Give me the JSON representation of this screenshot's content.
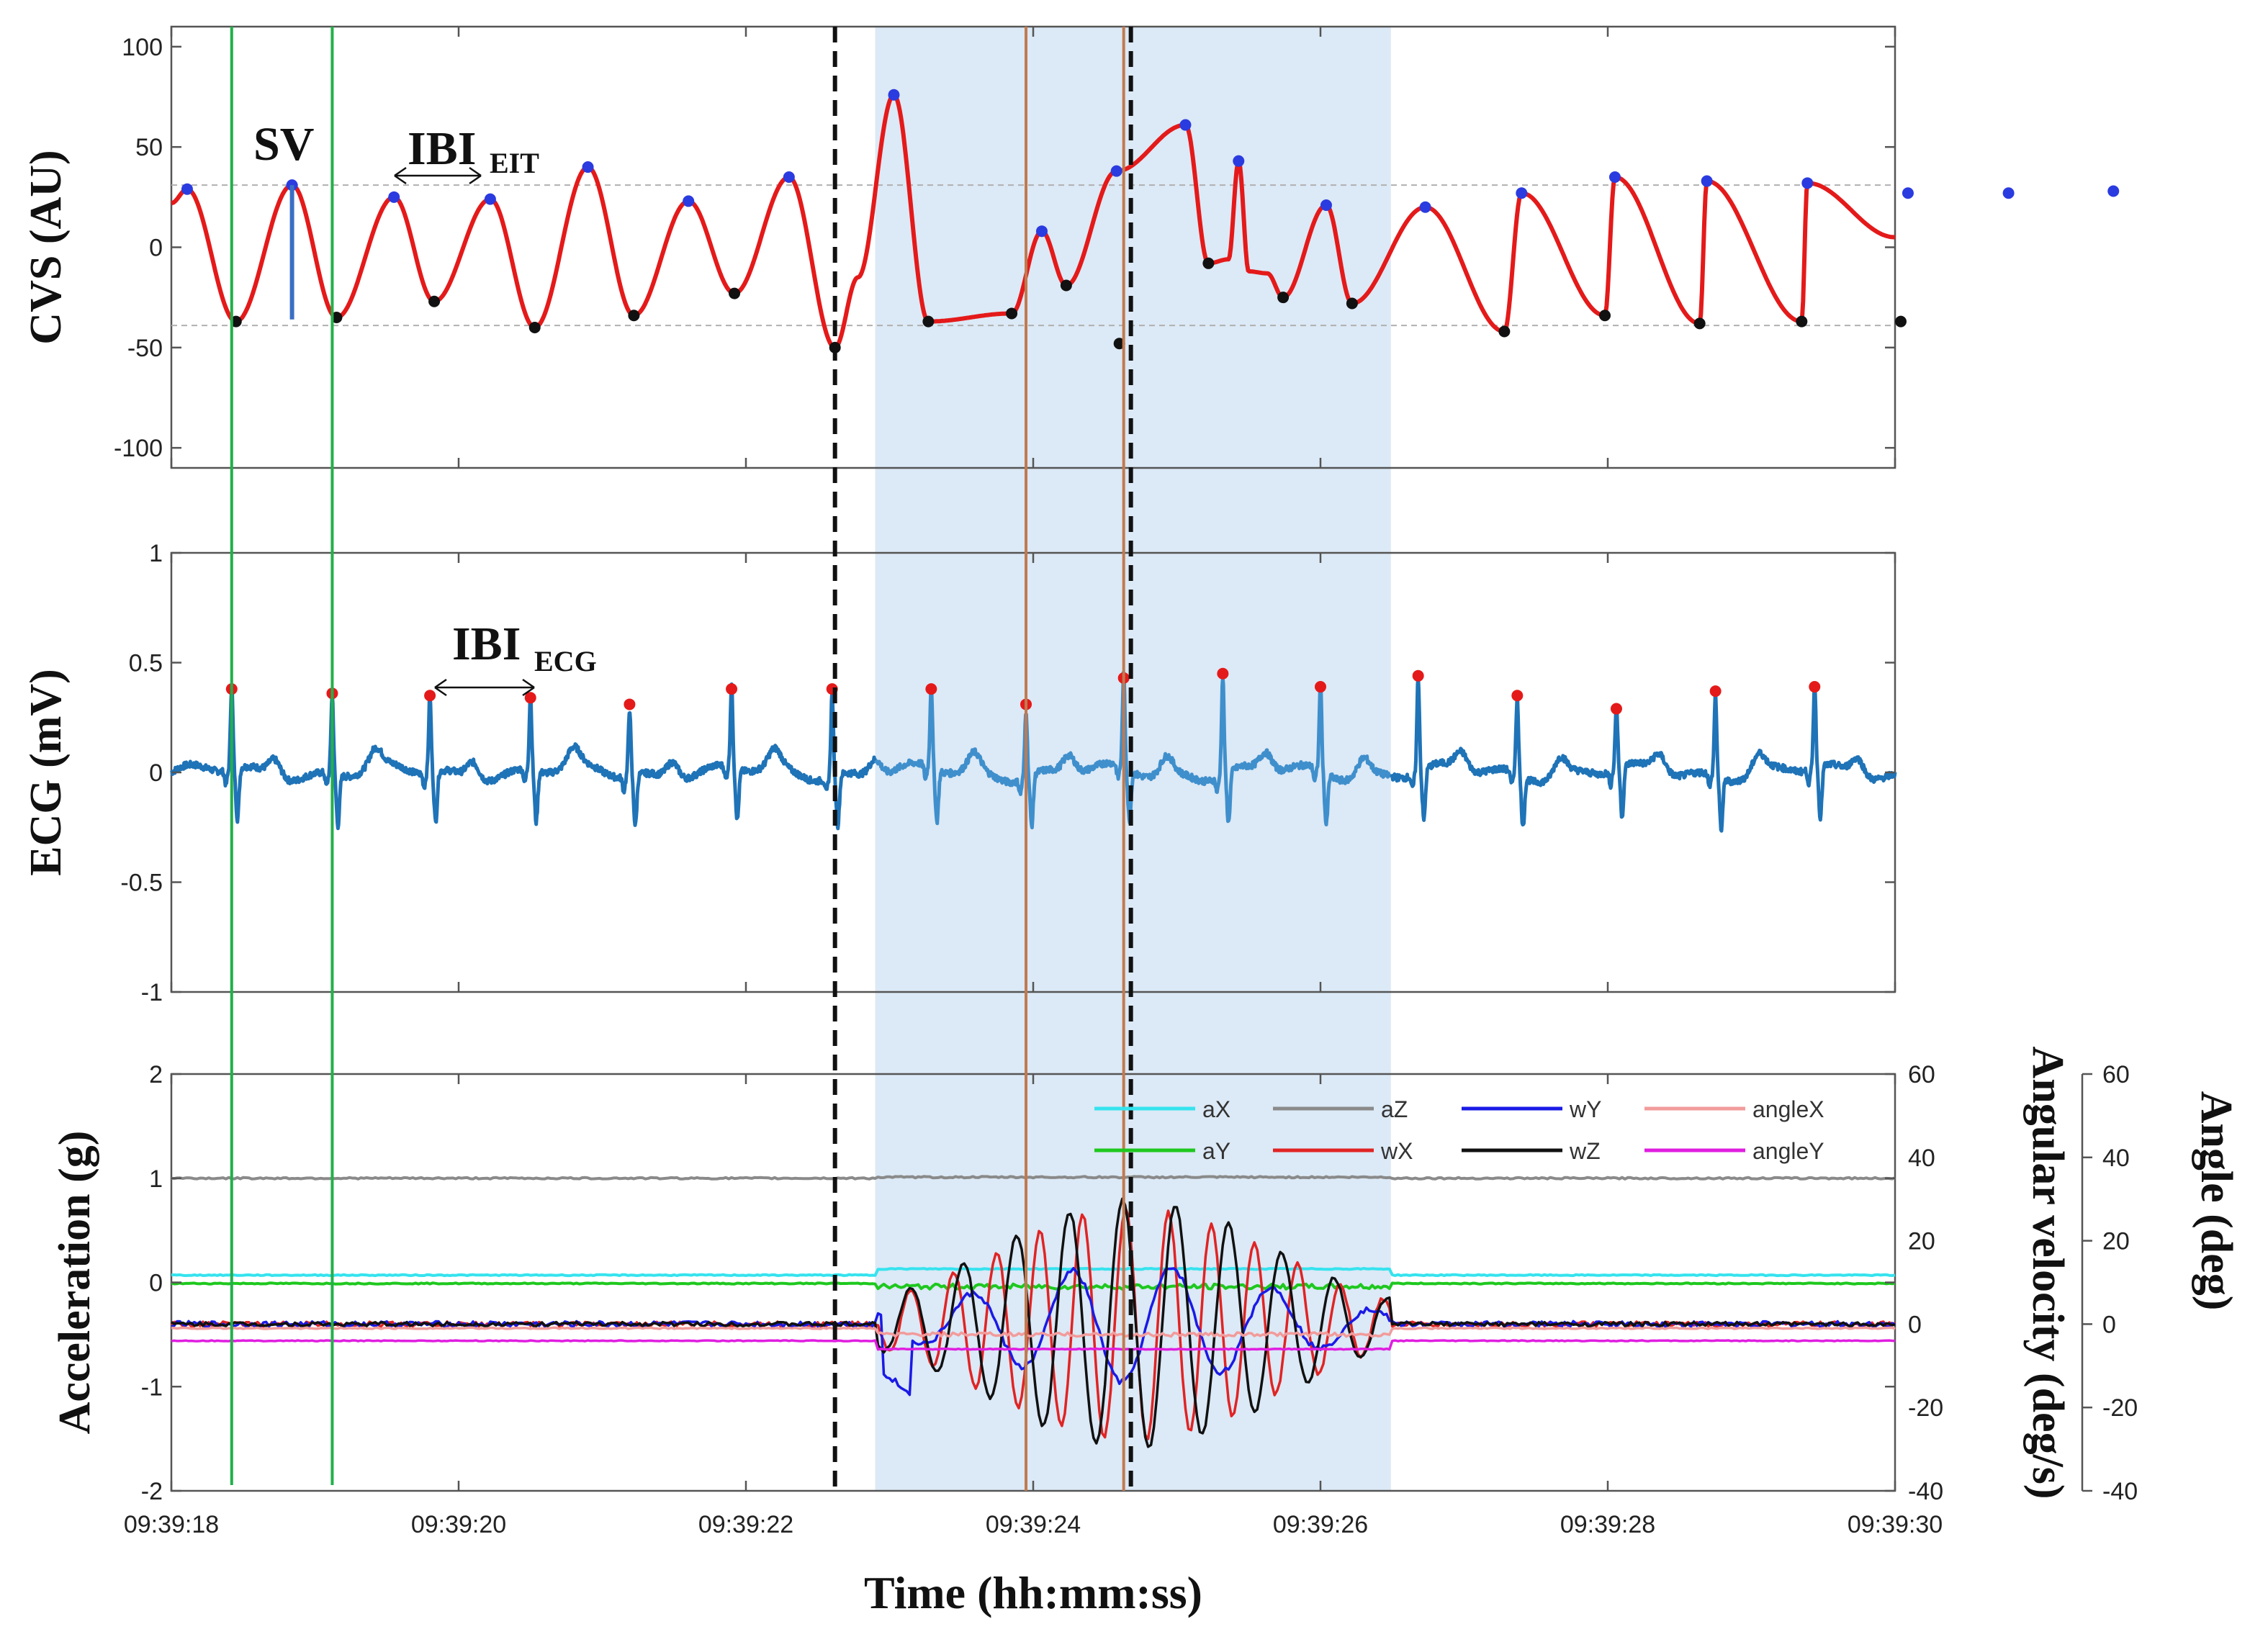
{
  "chart_data": [
    {
      "type": "line",
      "panel": "cvs",
      "ylabel": "CVS (AU)",
      "ylim": [
        -110,
        110
      ],
      "yticks": [
        "100",
        "50",
        "0",
        "-50",
        "-100"
      ],
      "reference_lines": [
        31,
        -39
      ],
      "annotations": [
        {
          "text": "SV"
        },
        {
          "text": "IBI",
          "sub": "EIT"
        }
      ],
      "peaks": {
        "x": [
          0.11,
          0.84,
          1.55,
          2.22,
          2.9,
          3.6,
          4.3,
          5.03,
          6.06,
          6.58,
          7.06,
          7.43,
          8.04,
          8.73,
          9.4,
          10.05,
          10.69,
          11.39,
          12.09,
          12.79,
          13.52
        ],
        "y": [
          29,
          31,
          25,
          24,
          40,
          23,
          35,
          76,
          8,
          38,
          61,
          43,
          21,
          20,
          27,
          35,
          33,
          32,
          27,
          27,
          28
        ]
      },
      "troughs": {
        "x": [
          0.45,
          1.15,
          1.83,
          2.53,
          3.22,
          3.92,
          4.62,
          5.27,
          5.85,
          6.23,
          6.6,
          7.22,
          7.74,
          8.22,
          9.28,
          9.98,
          10.64,
          11.35,
          12.04
        ],
        "y": [
          -37,
          -35,
          -27,
          -40,
          -34,
          -23,
          -50,
          -37,
          -33,
          -19,
          -48,
          -8,
          -25,
          -28,
          -42,
          -34,
          -38,
          -37,
          -37
        ]
      }
    },
    {
      "type": "line",
      "panel": "ecg",
      "ylabel": "ECG (mV)",
      "ylim": [
        -1,
        1
      ],
      "yticks": [
        "1",
        "0.5",
        "0",
        "-0.5",
        "-1"
      ],
      "annotations": [
        {
          "text": "IBI",
          "sub": "ECG"
        }
      ],
      "r_peaks": {
        "x": [
          0.42,
          1.12,
          1.8,
          2.5,
          3.19,
          3.9,
          4.6,
          5.29,
          5.95,
          6.63,
          7.32,
          8.0,
          8.68,
          9.37,
          10.06,
          10.75,
          11.44
        ],
        "y": [
          0.38,
          0.36,
          0.35,
          0.34,
          0.31,
          0.38,
          0.38,
          0.38,
          0.31,
          0.43,
          0.45,
          0.39,
          0.44,
          0.35,
          0.29,
          0.37,
          0.39
        ]
      }
    },
    {
      "type": "line",
      "panel": "imu",
      "xlabel": "Time (hh:mm:ss)",
      "xlim": [
        0,
        12
      ],
      "xticks": [
        "09:39:18",
        "09:39:20",
        "09:39:22",
        "09:39:24",
        "09:39:26",
        "09:39:28",
        "09:39:30"
      ],
      "ylabel": "Acceleration (g)",
      "ylim": [
        -2,
        2
      ],
      "yticks": [
        "2",
        "1",
        "0",
        "-1",
        "-2"
      ],
      "ylabel_right": "Angular velocity (deg/s)",
      "ylim_right": [
        -40,
        60
      ],
      "yticks_right": [
        "60",
        "40",
        "20",
        "0",
        "-20",
        "-40"
      ],
      "ylabel_right2": "Angle (deg)",
      "ylim_right2": [
        -40,
        60
      ],
      "yticks_right2": [
        "60",
        "40",
        "20",
        "0",
        "-20",
        "-40"
      ],
      "legend_position": "top-right",
      "series": [
        {
          "name": "aX",
          "color": "#35e3ee",
          "axis": "left",
          "baseline": 0.07
        },
        {
          "name": "aY",
          "color": "#1ec81e",
          "axis": "left",
          "baseline": -0.01
        },
        {
          "name": "aZ",
          "color": "#8a8a8a",
          "axis": "left",
          "baseline": 1.0
        },
        {
          "name": "wX",
          "color": "#e02424",
          "axis": "right",
          "baseline": 0
        },
        {
          "name": "wY",
          "color": "#1a1ae6",
          "axis": "right",
          "baseline": 0
        },
        {
          "name": "wZ",
          "color": "#111111",
          "axis": "right",
          "baseline": 0
        },
        {
          "name": "angleX",
          "color": "#f29b9b",
          "axis": "right2",
          "baseline": -1
        },
        {
          "name": "angleY",
          "color": "#e01ee0",
          "axis": "right2",
          "baseline": -4
        }
      ]
    }
  ],
  "markers": {
    "green_lines_x": [
      0.42,
      1.12
    ],
    "black_dashed_x": [
      4.62,
      6.68
    ],
    "brown_lines_x": [
      5.95,
      6.63
    ],
    "shaded_region_x": [
      4.9,
      8.49
    ],
    "colors": {
      "cvs_line": "#e41a1a",
      "cvs_peak": "#2a3be0",
      "cvs_trough": "#111111",
      "ecg_line": "#1f73b7",
      "ecg_peak": "#e41a1a",
      "shade": "#dce9f6",
      "green": "#22b04a",
      "brown": "#c07a50",
      "sv_bar": "#3a6fc4"
    }
  }
}
